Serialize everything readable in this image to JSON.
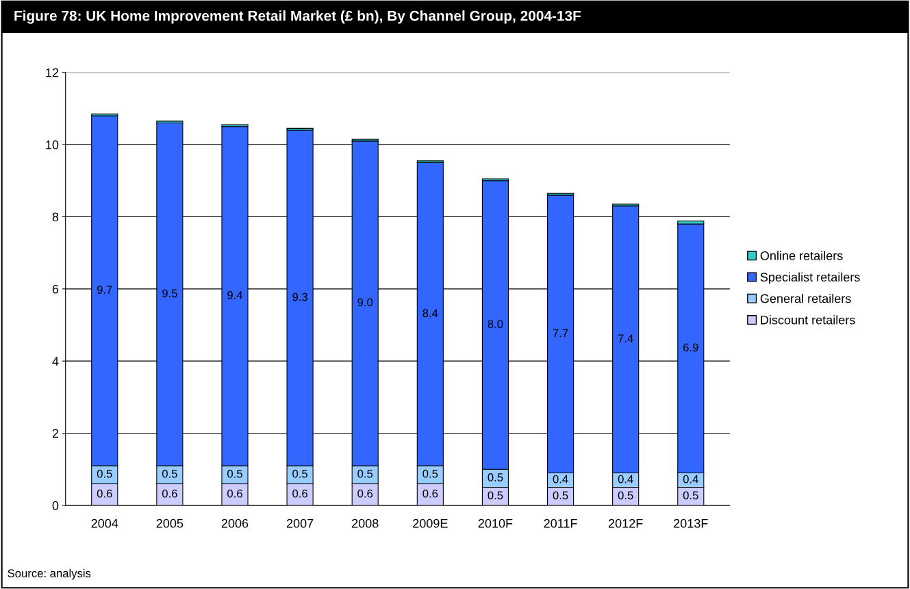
{
  "chart_data": {
    "type": "bar",
    "title": "Figure 78: UK Home Improvement Retail Market (£ bn), By Channel Group, 2004-13F",
    "categories": [
      "2004",
      "2005",
      "2006",
      "2007",
      "2008",
      "2009E",
      "2010F",
      "2011F",
      "2012F",
      "2013F"
    ],
    "stacked": true,
    "series": [
      {
        "name": "Discount retailers",
        "color": "#ccccff",
        "values": [
          0.6,
          0.6,
          0.6,
          0.6,
          0.6,
          0.6,
          0.5,
          0.5,
          0.5,
          0.5
        ],
        "value_labels": [
          "0.6",
          "0.6",
          "0.6",
          "0.6",
          "0.6",
          "0.6",
          "0.5",
          "0.5",
          "0.5",
          "0.5"
        ]
      },
      {
        "name": "General retailers",
        "color": "#99ccff",
        "values": [
          0.5,
          0.5,
          0.5,
          0.5,
          0.5,
          0.5,
          0.5,
          0.4,
          0.4,
          0.4
        ],
        "value_labels": [
          "0.5",
          "0.5",
          "0.5",
          "0.5",
          "0.5",
          "0.5",
          "0.5",
          "0.4",
          "0.4",
          "0.4"
        ]
      },
      {
        "name": "Specialist retailers",
        "color": "#3366ff",
        "values": [
          9.7,
          9.5,
          9.4,
          9.3,
          9.0,
          8.4,
          8.0,
          7.7,
          7.4,
          6.9
        ],
        "value_labels": [
          "9.7",
          "9.5",
          "9.4",
          "9.3",
          "9.0",
          "8.4",
          "8.0",
          "7.7",
          "7.4",
          "6.9"
        ]
      },
      {
        "name": "Online retailers",
        "color": "#33cccc",
        "values": [
          0.05,
          0.05,
          0.05,
          0.05,
          0.05,
          0.05,
          0.05,
          0.05,
          0.05,
          0.08
        ]
      }
    ],
    "ylim": [
      0,
      12
    ],
    "yticks": [
      0,
      2,
      4,
      6,
      8,
      10,
      12
    ],
    "grid": "y",
    "legend": "right",
    "annotations": [
      "Source: analysis"
    ]
  }
}
